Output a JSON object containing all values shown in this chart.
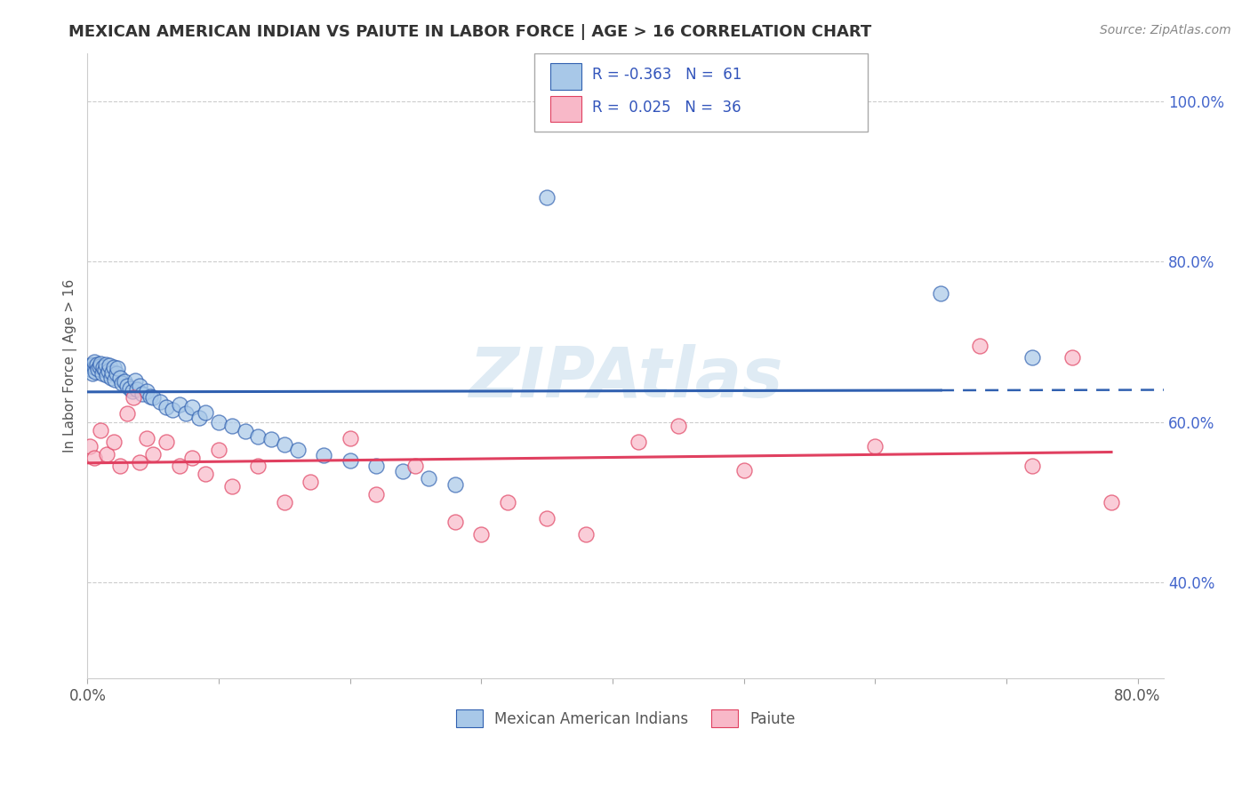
{
  "title": "MEXICAN AMERICAN INDIAN VS PAIUTE IN LABOR FORCE | AGE > 16 CORRELATION CHART",
  "source": "Source: ZipAtlas.com",
  "ylabel": "In Labor Force | Age > 16",
  "xlim": [
    0.0,
    0.82
  ],
  "ylim": [
    0.28,
    1.06
  ],
  "x_ticks": [
    0.0,
    0.1,
    0.2,
    0.3,
    0.4,
    0.5,
    0.6,
    0.7,
    0.8
  ],
  "x_tick_labels": [
    "0.0%",
    "",
    "",
    "",
    "",
    "",
    "",
    "",
    "80.0%"
  ],
  "y_ticks": [
    0.4,
    0.6,
    0.8,
    1.0
  ],
  "y_tick_labels": [
    "40.0%",
    "60.0%",
    "80.0%",
    "100.0%"
  ],
  "blue_color": "#a8c8e8",
  "pink_color": "#f8b8c8",
  "line_blue": "#3060b0",
  "line_pink": "#e04060",
  "watermark": "ZIPAtlas",
  "blue_R": -0.363,
  "blue_N": 61,
  "pink_R": 0.025,
  "pink_N": 36,
  "blue_x": [
    0.002,
    0.003,
    0.004,
    0.004,
    0.005,
    0.005,
    0.006,
    0.007,
    0.008,
    0.009,
    0.01,
    0.011,
    0.012,
    0.013,
    0.014,
    0.015,
    0.016,
    0.017,
    0.018,
    0.019,
    0.02,
    0.021,
    0.022,
    0.023,
    0.025,
    0.026,
    0.028,
    0.03,
    0.032,
    0.034,
    0.036,
    0.038,
    0.04,
    0.042,
    0.045,
    0.048,
    0.05,
    0.055,
    0.06,
    0.065,
    0.07,
    0.075,
    0.08,
    0.085,
    0.09,
    0.1,
    0.11,
    0.12,
    0.13,
    0.14,
    0.15,
    0.16,
    0.18,
    0.2,
    0.22,
    0.24,
    0.26,
    0.28,
    0.35,
    0.65,
    0.72
  ],
  "blue_y": [
    0.67,
    0.665,
    0.672,
    0.66,
    0.668,
    0.675,
    0.663,
    0.671,
    0.666,
    0.669,
    0.673,
    0.66,
    0.668,
    0.665,
    0.672,
    0.658,
    0.664,
    0.67,
    0.655,
    0.662,
    0.668,
    0.653,
    0.66,
    0.667,
    0.655,
    0.648,
    0.65,
    0.645,
    0.642,
    0.638,
    0.652,
    0.64,
    0.645,
    0.635,
    0.638,
    0.632,
    0.63,
    0.625,
    0.618,
    0.615,
    0.622,
    0.61,
    0.618,
    0.605,
    0.612,
    0.6,
    0.595,
    0.588,
    0.582,
    0.578,
    0.572,
    0.565,
    0.558,
    0.552,
    0.545,
    0.538,
    0.53,
    0.522,
    0.88,
    0.76,
    0.68
  ],
  "pink_x": [
    0.002,
    0.005,
    0.01,
    0.015,
    0.02,
    0.025,
    0.03,
    0.035,
    0.04,
    0.045,
    0.05,
    0.06,
    0.07,
    0.08,
    0.09,
    0.1,
    0.11,
    0.13,
    0.15,
    0.17,
    0.2,
    0.22,
    0.25,
    0.28,
    0.3,
    0.32,
    0.35,
    0.38,
    0.42,
    0.45,
    0.5,
    0.6,
    0.68,
    0.72,
    0.75,
    0.78
  ],
  "pink_y": [
    0.57,
    0.555,
    0.59,
    0.56,
    0.575,
    0.545,
    0.61,
    0.63,
    0.55,
    0.58,
    0.56,
    0.575,
    0.545,
    0.555,
    0.535,
    0.565,
    0.52,
    0.545,
    0.5,
    0.525,
    0.58,
    0.51,
    0.545,
    0.475,
    0.46,
    0.5,
    0.48,
    0.46,
    0.575,
    0.595,
    0.54,
    0.57,
    0.695,
    0.545,
    0.68,
    0.5
  ]
}
